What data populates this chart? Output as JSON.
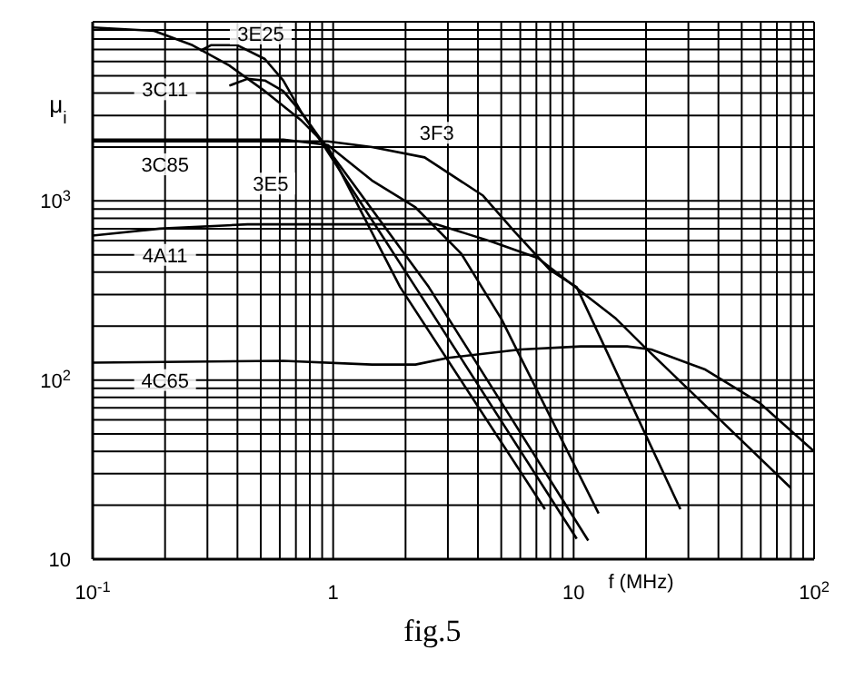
{
  "chart_data": {
    "type": "line",
    "xlabel": "f (MHz)",
    "ylabel": "μ$_{i}$",
    "log": "xy",
    "grid": true,
    "marker": "none",
    "line_style": "solid",
    "xlim": [
      0.1,
      100
    ],
    "ylim": [
      10,
      10000
    ],
    "xticks": [
      {
        "value": 0.1,
        "label": "10$^{-1}$"
      },
      {
        "value": 0.2,
        "label": null
      },
      {
        "value": 0.3,
        "label": null
      },
      {
        "value": 0.4,
        "label": null
      },
      {
        "value": 0.5,
        "label": null
      },
      {
        "value": 0.6,
        "label": null
      },
      {
        "value": 0.7,
        "label": null
      },
      {
        "value": 0.8,
        "label": null
      },
      {
        "value": 0.9,
        "label": null
      },
      1,
      {
        "value": 2,
        "label": null
      },
      {
        "value": 3,
        "label": null
      },
      {
        "value": 4,
        "label": null
      },
      {
        "value": 5,
        "label": null
      },
      {
        "value": 6,
        "label": null
      },
      {
        "value": 7,
        "label": null
      },
      {
        "value": 8,
        "label": null
      },
      {
        "value": 9,
        "label": null
      },
      10,
      {
        "value": 20,
        "label": null
      },
      {
        "value": 30,
        "label": null
      },
      {
        "value": 40,
        "label": null
      },
      {
        "value": 50,
        "label": null
      },
      {
        "value": 60,
        "label": null
      },
      {
        "value": 70,
        "label": null
      },
      {
        "value": 80,
        "label": null
      },
      {
        "value": 90,
        "label": null
      },
      {
        "value": 100,
        "label": "10$^{2}$"
      }
    ],
    "yticks": [
      10,
      {
        "value": 20,
        "label": null
      },
      {
        "value": 30,
        "label": null
      },
      {
        "value": 40,
        "label": null
      },
      {
        "value": 50,
        "label": null
      },
      {
        "value": 60,
        "label": null
      },
      {
        "value": 70,
        "label": null
      },
      {
        "value": 80,
        "label": null
      },
      {
        "value": 90,
        "label": null
      },
      {
        "value": 100,
        "label": "10$^{2}$"
      },
      {
        "value": 200,
        "label": null
      },
      {
        "value": 300,
        "label": null
      },
      {
        "value": 400,
        "label": null
      },
      {
        "value": 500,
        "label": null
      },
      {
        "value": 600,
        "label": null
      },
      {
        "value": 700,
        "label": null
      },
      {
        "value": 800,
        "label": null
      },
      {
        "value": 900,
        "label": null
      },
      {
        "value": 1000,
        "label": "10$^{3}$"
      },
      {
        "value": 2000,
        "label": null
      },
      {
        "value": 3000,
        "label": null
      },
      {
        "value": 4000,
        "label": null
      },
      {
        "value": 5000,
        "label": null
      },
      {
        "value": 6000,
        "label": null
      },
      {
        "value": 7000,
        "label": null
      },
      {
        "value": 8000,
        "label": null
      },
      {
        "value": 9000,
        "label": null
      },
      {
        "value": 10000,
        "label": null
      }
    ],
    "series": [
      {
        "color": "#000000",
        "x": [
          0.1,
          0.18,
          0.26,
          0.37,
          0.52,
          0.74,
          0.95,
          1.9,
          7.6
        ],
        "values": [
          9300,
          8900,
          7400,
          5700,
          4100,
          2800,
          2000,
          330,
          19
        ]
      },
      {
        "color": "#000000",
        "x": [
          0.28,
          0.31,
          0.4,
          0.52,
          0.62,
          0.74,
          0.9,
          2.2,
          10.3
        ],
        "values": [
          6900,
          7400,
          7400,
          6200,
          4700,
          3100,
          2100,
          330,
          13
        ]
      },
      {
        "color": "#000000",
        "x": [
          0.37,
          0.44,
          0.52,
          0.62,
          0.74,
          0.9,
          2.5,
          11.5
        ],
        "values": [
          4400,
          4800,
          4700,
          4100,
          3100,
          2150,
          330,
          12.7
        ]
      },
      {
        "color": "#000000",
        "x": [
          0.1,
          0.62,
          0.95,
          1.45,
          2.2,
          3.4,
          5,
          12.7
        ],
        "values": [
          2200,
          2200,
          2050,
          1300,
          920,
          510,
          220,
          18
        ]
      },
      {
        "color": "#000000",
        "x": [
          0.1,
          0.95,
          1.45,
          2.4,
          4.2,
          5.7,
          8,
          10.3,
          27.8
        ],
        "values": [
          2150,
          2150,
          2000,
          1750,
          1070,
          670,
          410,
          330,
          19
        ]
      },
      {
        "color": "#000000",
        "x": [
          0.1,
          0.19,
          0.44,
          2.7,
          4.6,
          7.1,
          15,
          20,
          80
        ],
        "values": [
          640,
          700,
          740,
          740,
          590,
          480,
          220,
          150,
          25
        ]
      },
      {
        "color": "#000000",
        "x": [
          0.1,
          0.62,
          1.45,
          2.2,
          3,
          6,
          10.7,
          16.7,
          21,
          35,
          59,
          100
        ],
        "values": [
          125,
          128,
          122,
          122,
          133,
          148,
          154,
          154,
          148,
          115,
          75,
          40
        ]
      }
    ],
    "annotations": [
      {
        "text": "3E25",
        "x": 0.5,
        "y": 8600
      },
      {
        "text": "3C11",
        "x": 0.2,
        "y": 4200
      },
      {
        "text": "3C85",
        "x": 0.2,
        "y": 1600
      },
      {
        "text": "3E5",
        "x": 0.55,
        "y": 1250
      },
      {
        "text": "3F3",
        "x": 2.7,
        "y": 2400
      },
      {
        "text": "4A11",
        "x": 0.2,
        "y": 500
      },
      {
        "text": "4C65",
        "x": 0.2,
        "y": 100
      },
      "fig.5"
    ]
  }
}
